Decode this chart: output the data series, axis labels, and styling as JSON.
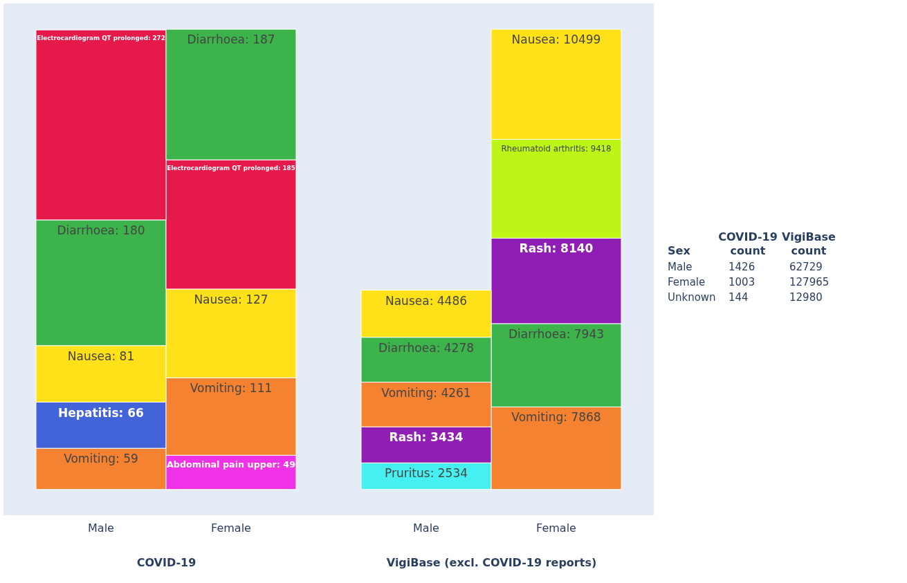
{
  "chart_data": [
    {
      "type": "bar",
      "stacked": true,
      "categories": [
        "Male",
        "Female"
      ],
      "xlabel": "COVID-19",
      "series": [
        {
          "colors": [
            "#f58231",
            "#f032e6"
          ],
          "values": [
            59,
            49
          ],
          "value_labels": [
            "Vomiting: 59",
            "Abdominal pain upper: 49"
          ]
        },
        {
          "colors": [
            "#4363d8",
            "#f58231"
          ],
          "values": [
            66,
            111
          ],
          "value_labels": [
            "Hepatitis: 66",
            "Vomiting: 111"
          ]
        },
        {
          "colors": [
            "#ffe119",
            "#ffe119"
          ],
          "values": [
            81,
            127
          ],
          "value_labels": [
            "Nausea: 81",
            "Nausea: 127"
          ]
        },
        {
          "colors": [
            "#3cb44b",
            "#e6194b"
          ],
          "values": [
            180,
            185
          ],
          "value_labels": [
            "Diarrhoea: 180",
            "Electrocardiogram QT prolonged: 185"
          ]
        },
        {
          "colors": [
            "#e6194b",
            "#3cb44b"
          ],
          "values": [
            272,
            187
          ],
          "value_labels": [
            "Electrocardiogram QT prolonged: 272",
            "Diarrhoea: 187"
          ]
        }
      ]
    },
    {
      "type": "bar",
      "stacked": true,
      "categories": [
        "Male",
        "Female"
      ],
      "xlabel": "VigiBase (excl. COVID-19 reports)",
      "series": [
        {
          "colors": [
            "#46f0f0",
            "#f58231"
          ],
          "values": [
            2534,
            7868
          ],
          "value_labels": [
            "Pruritus: 2534",
            "Vomiting: 7868"
          ]
        },
        {
          "colors": [
            "#911eb4",
            "#3cb44b"
          ],
          "values": [
            3434,
            7943
          ],
          "value_labels": [
            "Rash: 3434",
            "Diarrhoea: 7943"
          ]
        },
        {
          "colors": [
            "#f58231",
            "#911eb4"
          ],
          "values": [
            4261,
            8140
          ],
          "value_labels": [
            "Vomiting: 4261",
            "Rash: 8140"
          ]
        },
        {
          "colors": [
            "#3cb44b",
            "#bcf516"
          ],
          "values": [
            4278,
            9418
          ],
          "value_labels": [
            "Diarrhoea: 4278",
            "Rheumatoid arthritis: 9418"
          ]
        },
        {
          "colors": [
            "#ffe119",
            "#ffe119"
          ],
          "values": [
            4486,
            10499
          ],
          "value_labels": [
            "Nausea: 4486",
            "Nausea: 10499"
          ]
        }
      ]
    },
    {
      "type": "other",
      "annotations": [
        "Sex",
        "COVID-19 count",
        "VigiBase count",
        "Male",
        "1426",
        "62729",
        "Female",
        "1003",
        "127965",
        "Unknown",
        "144",
        "12980"
      ]
    }
  ]
}
